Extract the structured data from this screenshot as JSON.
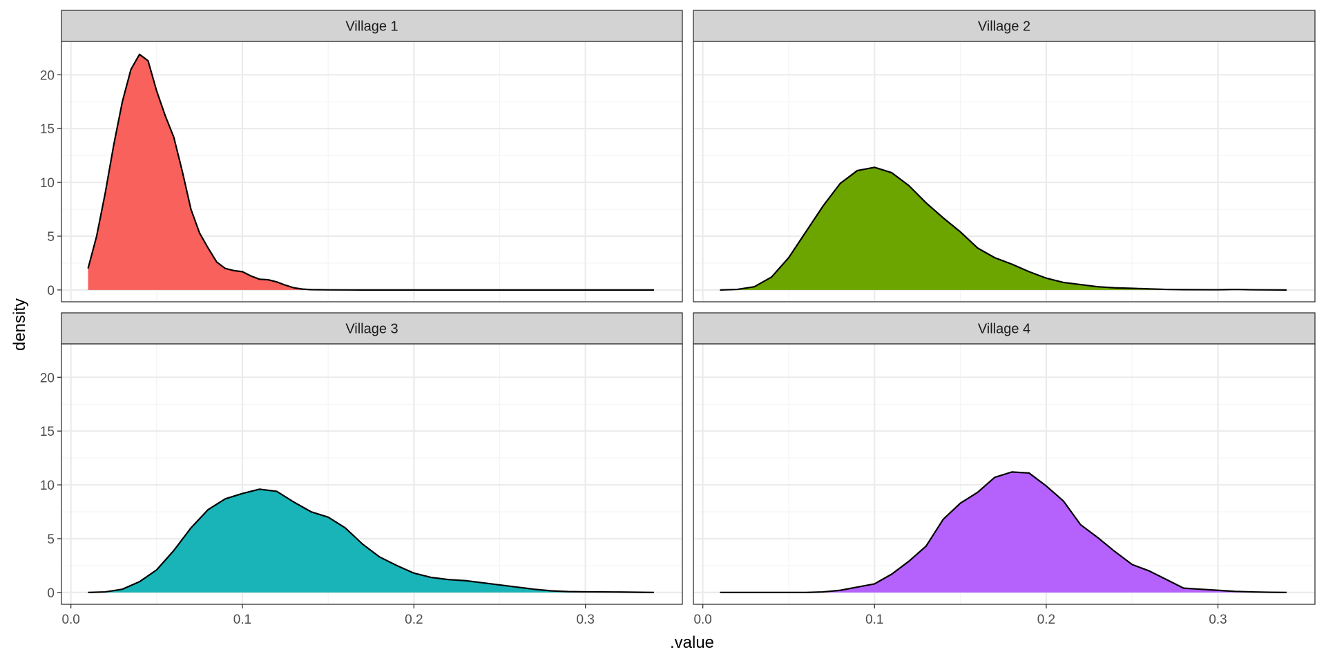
{
  "chart_data": {
    "type": "area",
    "xlabel": ".value",
    "ylabel": "density",
    "xlim": [
      -0.0055,
      0.3565
    ],
    "ylim": [
      -1.1,
      23.1
    ],
    "x_ticks": [
      0.0,
      0.1,
      0.2,
      0.3
    ],
    "x_tick_labels": [
      "0.0",
      "0.1",
      "0.2",
      "0.3"
    ],
    "y_ticks": [
      0,
      5,
      10,
      15,
      20
    ],
    "y_tick_labels": [
      "0",
      "5",
      "10",
      "15",
      "20"
    ],
    "grid": true,
    "legend": "none",
    "layout": {
      "rows": 2,
      "cols": 2
    },
    "panels": [
      {
        "name": "Village 1",
        "color": "#f8615c",
        "points": [
          [
            0.01,
            2.0
          ],
          [
            0.015,
            5.0
          ],
          [
            0.02,
            9.0
          ],
          [
            0.025,
            13.5
          ],
          [
            0.03,
            17.5
          ],
          [
            0.035,
            20.5
          ],
          [
            0.04,
            21.9
          ],
          [
            0.045,
            21.3
          ],
          [
            0.05,
            18.5
          ],
          [
            0.055,
            16.2
          ],
          [
            0.06,
            14.2
          ],
          [
            0.065,
            11.0
          ],
          [
            0.07,
            7.5
          ],
          [
            0.075,
            5.3
          ],
          [
            0.08,
            3.9
          ],
          [
            0.085,
            2.6
          ],
          [
            0.09,
            2.0
          ],
          [
            0.095,
            1.8
          ],
          [
            0.1,
            1.7
          ],
          [
            0.105,
            1.3
          ],
          [
            0.11,
            1.0
          ],
          [
            0.115,
            0.95
          ],
          [
            0.12,
            0.75
          ],
          [
            0.125,
            0.45
          ],
          [
            0.13,
            0.2
          ],
          [
            0.135,
            0.08
          ],
          [
            0.14,
            0.03
          ],
          [
            0.15,
            0.01
          ],
          [
            0.17,
            0.0
          ],
          [
            0.2,
            0.0
          ],
          [
            0.25,
            0.0
          ],
          [
            0.3,
            0.0
          ],
          [
            0.34,
            0.0
          ]
        ]
      },
      {
        "name": "Village 2",
        "color": "#6ca500",
        "points": [
          [
            0.01,
            0.0
          ],
          [
            0.02,
            0.05
          ],
          [
            0.03,
            0.3
          ],
          [
            0.04,
            1.2
          ],
          [
            0.05,
            3.0
          ],
          [
            0.06,
            5.4
          ],
          [
            0.07,
            7.8
          ],
          [
            0.08,
            9.9
          ],
          [
            0.09,
            11.1
          ],
          [
            0.1,
            11.4
          ],
          [
            0.11,
            10.9
          ],
          [
            0.12,
            9.7
          ],
          [
            0.13,
            8.1
          ],
          [
            0.14,
            6.7
          ],
          [
            0.15,
            5.4
          ],
          [
            0.16,
            3.9
          ],
          [
            0.17,
            3.0
          ],
          [
            0.18,
            2.4
          ],
          [
            0.19,
            1.7
          ],
          [
            0.2,
            1.1
          ],
          [
            0.21,
            0.7
          ],
          [
            0.22,
            0.5
          ],
          [
            0.23,
            0.3
          ],
          [
            0.24,
            0.2
          ],
          [
            0.25,
            0.15
          ],
          [
            0.26,
            0.1
          ],
          [
            0.27,
            0.05
          ],
          [
            0.28,
            0.03
          ],
          [
            0.3,
            0.02
          ],
          [
            0.31,
            0.05
          ],
          [
            0.32,
            0.02
          ],
          [
            0.34,
            0.0
          ]
        ]
      },
      {
        "name": "Village 3",
        "color": "#18b4b8",
        "points": [
          [
            0.01,
            0.0
          ],
          [
            0.02,
            0.05
          ],
          [
            0.03,
            0.3
          ],
          [
            0.04,
            1.0
          ],
          [
            0.05,
            2.1
          ],
          [
            0.06,
            3.9
          ],
          [
            0.07,
            6.0
          ],
          [
            0.08,
            7.7
          ],
          [
            0.09,
            8.7
          ],
          [
            0.1,
            9.2
          ],
          [
            0.11,
            9.6
          ],
          [
            0.12,
            9.4
          ],
          [
            0.13,
            8.4
          ],
          [
            0.14,
            7.5
          ],
          [
            0.15,
            7.0
          ],
          [
            0.16,
            6.0
          ],
          [
            0.17,
            4.5
          ],
          [
            0.18,
            3.3
          ],
          [
            0.19,
            2.5
          ],
          [
            0.2,
            1.8
          ],
          [
            0.21,
            1.4
          ],
          [
            0.22,
            1.2
          ],
          [
            0.23,
            1.1
          ],
          [
            0.24,
            0.9
          ],
          [
            0.25,
            0.7
          ],
          [
            0.26,
            0.5
          ],
          [
            0.27,
            0.3
          ],
          [
            0.28,
            0.15
          ],
          [
            0.29,
            0.08
          ],
          [
            0.3,
            0.06
          ],
          [
            0.31,
            0.05
          ],
          [
            0.32,
            0.04
          ],
          [
            0.34,
            0.0
          ]
        ]
      },
      {
        "name": "Village 4",
        "color": "#b562fd",
        "points": [
          [
            0.01,
            0.0
          ],
          [
            0.03,
            0.0
          ],
          [
            0.05,
            0.0
          ],
          [
            0.06,
            0.0
          ],
          [
            0.07,
            0.05
          ],
          [
            0.08,
            0.2
          ],
          [
            0.09,
            0.5
          ],
          [
            0.1,
            0.8
          ],
          [
            0.11,
            1.7
          ],
          [
            0.12,
            2.9
          ],
          [
            0.13,
            4.3
          ],
          [
            0.14,
            6.8
          ],
          [
            0.15,
            8.3
          ],
          [
            0.16,
            9.3
          ],
          [
            0.17,
            10.7
          ],
          [
            0.18,
            11.2
          ],
          [
            0.19,
            11.1
          ],
          [
            0.2,
            9.9
          ],
          [
            0.21,
            8.5
          ],
          [
            0.22,
            6.3
          ],
          [
            0.23,
            5.1
          ],
          [
            0.24,
            3.8
          ],
          [
            0.25,
            2.6
          ],
          [
            0.26,
            2.0
          ],
          [
            0.27,
            1.2
          ],
          [
            0.28,
            0.4
          ],
          [
            0.29,
            0.3
          ],
          [
            0.3,
            0.2
          ],
          [
            0.31,
            0.1
          ],
          [
            0.32,
            0.05
          ],
          [
            0.33,
            0.02
          ],
          [
            0.34,
            0.0
          ]
        ]
      }
    ]
  }
}
